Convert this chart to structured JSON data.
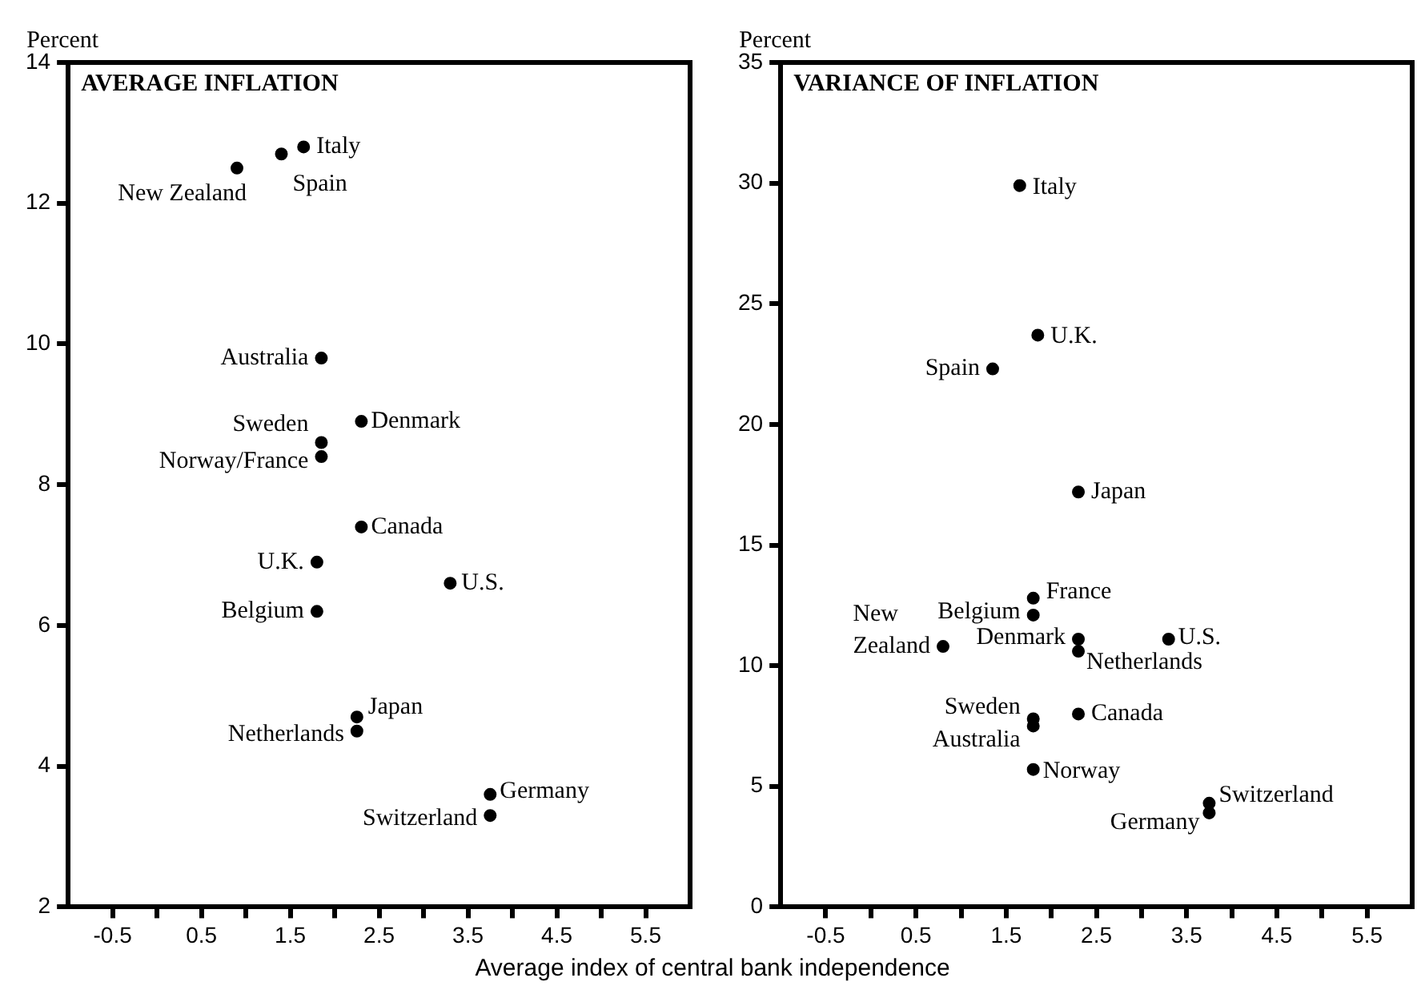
{
  "chart_data": [
    {
      "type": "scatter",
      "title": "AVERAGE INFLATION",
      "ylabel": "Percent",
      "xlabel": "Average index of central bank independence",
      "marker": "circle",
      "grid": false,
      "legend": false,
      "series": [
        {
          "color": "#000000",
          "x": [
            0.9,
            1.4,
            1.65,
            1.85,
            2.3,
            1.85,
            1.85,
            2.3,
            1.8,
            3.3,
            1.8,
            2.25,
            2.25,
            3.75,
            3.75
          ],
          "values": [
            12.5,
            12.7,
            12.8,
            9.8,
            8.9,
            8.6,
            8.4,
            7.4,
            6.9,
            6.6,
            6.2,
            4.7,
            4.5,
            3.6,
            3.3
          ],
          "value_labels": [
            "New Zealand",
            "Spain",
            "Italy",
            "Australia",
            "Denmark",
            "Sweden",
            "Norway/France",
            "Canada",
            "U.K.",
            "U.S.",
            "Belgium",
            "Japan",
            "Netherlands",
            "Germany",
            "Switzerland"
          ]
        }
      ],
      "xlim": [
        -1,
        6
      ],
      "xticks": [
        -0.5,
        {
          "value": 0,
          "label": null
        },
        0.5,
        {
          "value": 1,
          "label": null
        },
        1.5,
        {
          "value": 2,
          "label": null
        },
        2.5,
        {
          "value": 3,
          "label": null
        },
        3.5,
        {
          "value": 4,
          "label": null
        },
        4.5,
        {
          "value": 5,
          "label": null
        },
        5.5
      ],
      "ylim": [
        2,
        14
      ],
      "yticks": [
        2,
        4,
        6,
        8,
        10,
        12,
        14
      ]
    },
    {
      "type": "scatter",
      "title": "VARIANCE OF INFLATION",
      "ylabel": "Percent",
      "marker": "circle",
      "grid": false,
      "legend": false,
      "series": [
        {
          "color": "#000000",
          "x": [
            1.65,
            1.85,
            1.35,
            2.3,
            1.8,
            1.8,
            0.8,
            2.3,
            2.3,
            3.3,
            1.8,
            1.8,
            2.3,
            1.8,
            3.75,
            3.75
          ],
          "values": [
            29.9,
            23.7,
            22.3,
            17.2,
            12.8,
            12.1,
            10.8,
            11.1,
            10.6,
            11.1,
            7.8,
            7.5,
            8.0,
            5.7,
            4.3,
            3.9
          ],
          "value_labels": [
            "Italy",
            "U.K.",
            "Spain",
            "Japan",
            "France",
            "Belgium",
            "New Zealand",
            "Denmark",
            "Netherlands",
            "U.S.",
            "Sweden",
            "Australia",
            "Canada",
            "Norway",
            "Switzerland",
            "Germany"
          ]
        }
      ],
      "xlim": [
        -1,
        6
      ],
      "xticks": [
        -0.5,
        {
          "value": 0,
          "label": null
        },
        0.5,
        {
          "value": 1,
          "label": null
        },
        1.5,
        {
          "value": 2,
          "label": null
        },
        2.5,
        {
          "value": 3,
          "label": null
        },
        3.5,
        {
          "value": 4,
          "label": null
        },
        4.5,
        {
          "value": 5,
          "label": null
        },
        5.5
      ],
      "ylim": [
        0,
        35
      ],
      "yticks": [
        0,
        5,
        10,
        15,
        20,
        25,
        30,
        35
      ]
    }
  ]
}
